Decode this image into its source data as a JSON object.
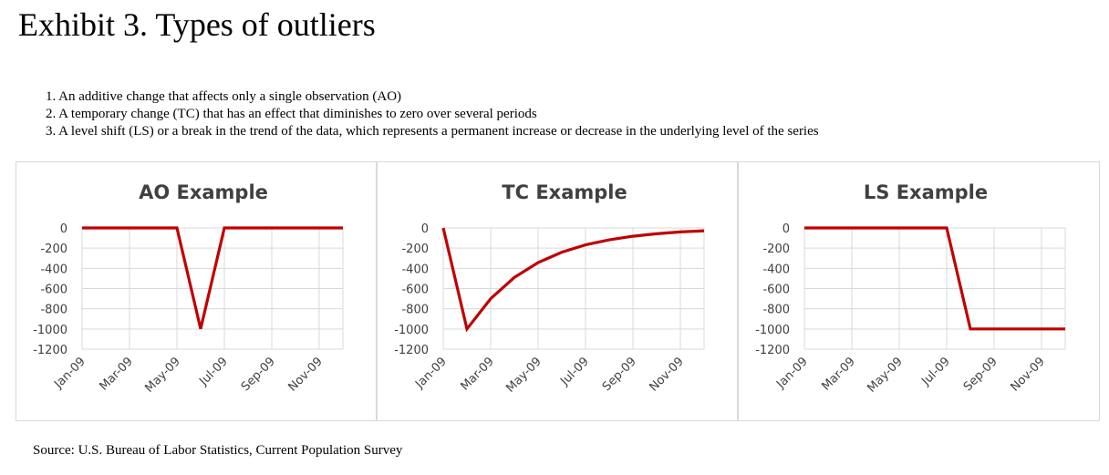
{
  "title": "Exhibit 3. Types of outliers",
  "notes": [
    "1. An additive change that affects only a single observation (AO)",
    "2. A temporary change (TC) that has an effect that diminishes to zero over several periods",
    "3. A level shift (LS) or a break in the trend of the data, which represents a permanent increase or decrease in the underlying level of the series"
  ],
  "source": "Source: U.S. Bureau of Labor Statistics, Current Population Survey",
  "colors": {
    "series": "#c00000",
    "grid": "#d9d9d9",
    "axis_text": "#404040",
    "border": "#d9d9d9"
  },
  "chart_data": [
    {
      "type": "line",
      "title": "AO Example",
      "x": [
        "Jan-09",
        "Feb-09",
        "Mar-09",
        "Apr-09",
        "May-09",
        "Jun-09",
        "Jul-09",
        "Aug-09",
        "Sep-09",
        "Oct-09",
        "Nov-09",
        "Dec-09"
      ],
      "x_tick_labels": [
        "Jan-09",
        "Mar-09",
        "May-09",
        "Jul-09",
        "Sep-09",
        "Nov-09"
      ],
      "values": [
        0,
        0,
        0,
        0,
        0,
        -1000,
        0,
        0,
        0,
        0,
        0,
        0
      ],
      "y_ticks": [
        0,
        -200,
        -400,
        -600,
        -800,
        -1000,
        -1200
      ],
      "ylim": [
        -1200,
        0
      ],
      "grid": true
    },
    {
      "type": "line",
      "title": "TC Example",
      "x": [
        "Jan-09",
        "Feb-09",
        "Mar-09",
        "Apr-09",
        "May-09",
        "Jun-09",
        "Jul-09",
        "Aug-09",
        "Sep-09",
        "Oct-09",
        "Nov-09",
        "Dec-09"
      ],
      "x_tick_labels": [
        "Jan-09",
        "Mar-09",
        "May-09",
        "Jul-09",
        "Sep-09",
        "Nov-09"
      ],
      "values": [
        0,
        -1000,
        -700,
        -490,
        -343,
        -240,
        -168,
        -118,
        -82,
        -58,
        -40,
        -28
      ],
      "y_ticks": [
        0,
        -200,
        -400,
        -600,
        -800,
        -1000,
        -1200
      ],
      "ylim": [
        -1200,
        0
      ],
      "grid": true
    },
    {
      "type": "line",
      "title": "LS Example",
      "x": [
        "Jan-09",
        "Feb-09",
        "Mar-09",
        "Apr-09",
        "May-09",
        "Jun-09",
        "Jul-09",
        "Aug-09",
        "Sep-09",
        "Oct-09",
        "Nov-09",
        "Dec-09"
      ],
      "x_tick_labels": [
        "Jan-09",
        "Mar-09",
        "May-09",
        "Jul-09",
        "Sep-09",
        "Nov-09"
      ],
      "values": [
        0,
        0,
        0,
        0,
        0,
        0,
        0,
        -1000,
        -1000,
        -1000,
        -1000,
        -1000
      ],
      "y_ticks": [
        0,
        -200,
        -400,
        -600,
        -800,
        -1000,
        -1200
      ],
      "ylim": [
        -1200,
        0
      ],
      "grid": true
    }
  ]
}
